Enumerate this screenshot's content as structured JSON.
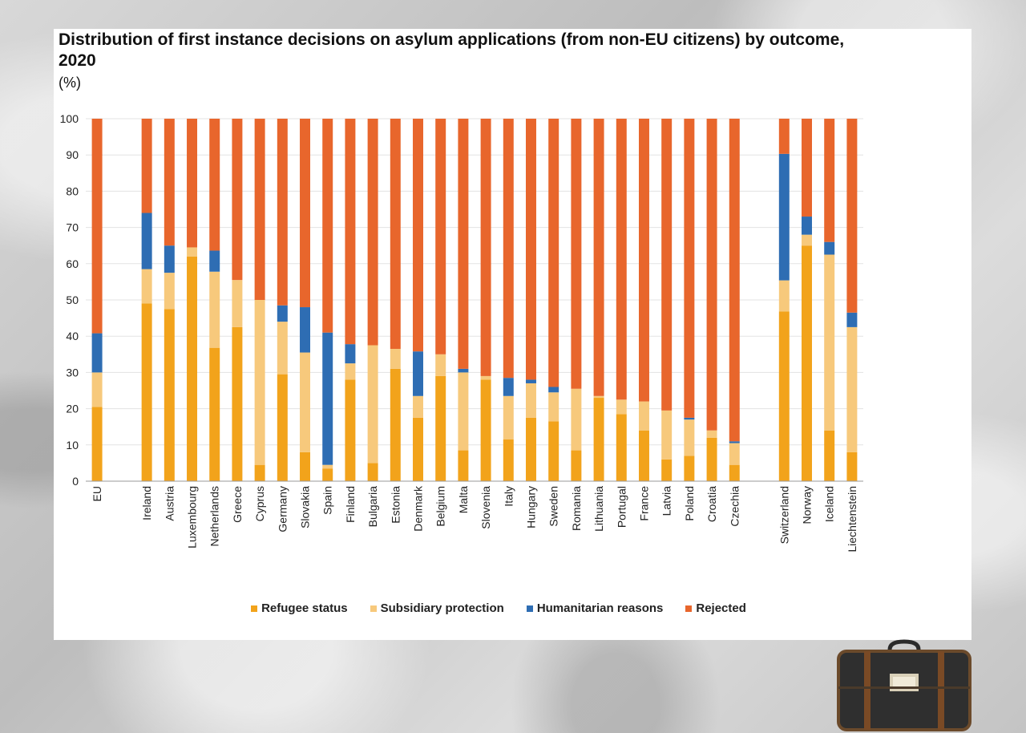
{
  "title": "Distribution of first instance decisions on asylum applications (from non-EU citizens) by outcome, 2020",
  "unit": "(%)",
  "colors": {
    "refugee": "#f2a31b",
    "subsidiary": "#f7c97c",
    "humanitarian": "#2e6db3",
    "rejected": "#e8662c"
  },
  "chart_data": {
    "type": "bar",
    "stacked": true,
    "title": "Distribution of first instance decisions on asylum applications (from non-EU citizens) by outcome, 2020",
    "ylabel": "(%)",
    "ylim": [
      0,
      100
    ],
    "yticks": [
      0,
      10,
      20,
      30,
      40,
      50,
      60,
      70,
      80,
      90,
      100
    ],
    "categories": [
      "EU",
      "Ireland",
      "Austria",
      "Luxembourg",
      "Netherlands",
      "Greece",
      "Cyprus",
      "Germany",
      "Slovakia",
      "Spain",
      "Finland",
      "Bulgaria",
      "Estonia",
      "Denmark",
      "Belgium",
      "Malta",
      "Slovenia",
      "Italy",
      "Hungary",
      "Sweden",
      "Romania",
      "Lithuania",
      "Portugal",
      "France",
      "Latvia",
      "Poland",
      "Croatia",
      "Czechia",
      "Switzerland",
      "Norway",
      "Iceland",
      "Liechtenstein"
    ],
    "groups": [
      1,
      2,
      2,
      2,
      2,
      2,
      2,
      2,
      2,
      2,
      2,
      2,
      2,
      2,
      2,
      2,
      2,
      2,
      2,
      2,
      2,
      2,
      2,
      2,
      2,
      2,
      2,
      2,
      3,
      3,
      3,
      3
    ],
    "series": [
      {
        "name": "Refugee status",
        "values": [
          20.5,
          49,
          47.5,
          62,
          36.8,
          42.5,
          4.5,
          29.5,
          8,
          3.5,
          28,
          5,
          31,
          17.5,
          29,
          8.5,
          28,
          11.5,
          17.5,
          16.5,
          8.5,
          23,
          18.5,
          14,
          6,
          7,
          12,
          4.5,
          46.8,
          65,
          14,
          8
        ]
      },
      {
        "name": "Subsidiary protection",
        "values": [
          9.5,
          9.5,
          10,
          2.5,
          21,
          13,
          45.5,
          14.5,
          27.5,
          1,
          4.5,
          32.5,
          5.5,
          6,
          6,
          21.5,
          1,
          12,
          9.5,
          8,
          17,
          0.5,
          4,
          8,
          13.5,
          10,
          2,
          6,
          8.6,
          3,
          48.5,
          34.5
        ]
      },
      {
        "name": "Humanitarian reasons",
        "values": [
          10.8,
          15.5,
          7.5,
          0,
          5.8,
          0,
          0,
          4.5,
          12.5,
          36.5,
          5.3,
          0,
          0,
          12.3,
          0,
          1,
          0,
          5,
          1,
          1.5,
          0,
          0,
          0,
          0,
          0,
          0.5,
          0,
          0.5,
          34.9,
          5,
          3.5,
          4
        ]
      },
      {
        "name": "Rejected",
        "values": [
          59.2,
          26,
          35,
          35.5,
          36.4,
          44.5,
          50,
          51.5,
          52,
          59,
          62.2,
          62.5,
          63.5,
          64.2,
          65,
          69,
          71,
          71.5,
          72,
          74,
          74.5,
          76.5,
          77.5,
          78,
          80.5,
          82.5,
          86,
          89,
          9.7,
          27,
          34,
          53.5
        ]
      }
    ],
    "legend": [
      "Refugee status",
      "Subsidiary protection",
      "Humanitarian reasons",
      "Rejected"
    ],
    "legend_position": "bottom",
    "grid": true
  }
}
